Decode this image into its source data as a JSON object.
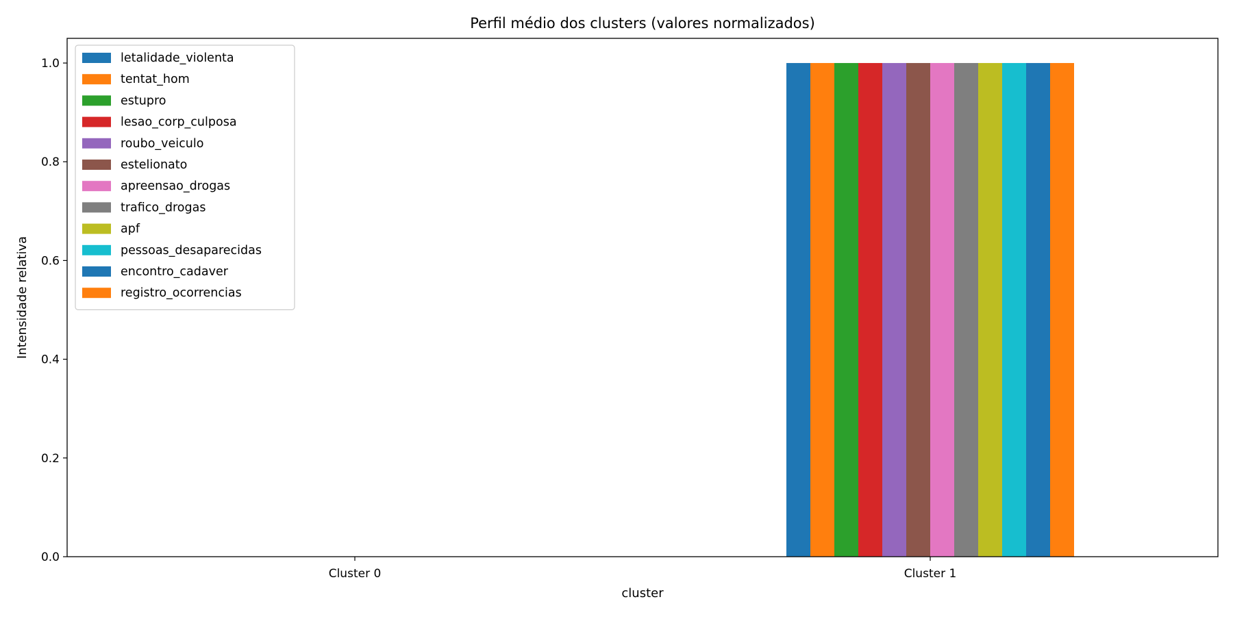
{
  "chart_data": {
    "type": "bar",
    "title": "Perfil médio dos clusters (valores normalizados)",
    "xlabel": "cluster",
    "ylabel": "Intensidade relativa",
    "categories": [
      "Cluster 0",
      "Cluster 1"
    ],
    "ylim": [
      0,
      1.05
    ],
    "yticks": [
      0.0,
      0.2,
      0.4,
      0.6,
      0.8,
      1.0
    ],
    "ytick_labels": [
      "0.0",
      "0.2",
      "0.4",
      "0.6",
      "0.8",
      "1.0"
    ],
    "grid": false,
    "legend_position": "upper-left",
    "series": [
      {
        "name": "letalidade_violenta",
        "color": "#1f77b4",
        "values": [
          0.0,
          1.0
        ]
      },
      {
        "name": "tentat_hom",
        "color": "#ff7f0e",
        "values": [
          0.0,
          1.0
        ]
      },
      {
        "name": "estupro",
        "color": "#2ca02c",
        "values": [
          0.0,
          1.0
        ]
      },
      {
        "name": "lesao_corp_culposa",
        "color": "#d62728",
        "values": [
          0.0,
          1.0
        ]
      },
      {
        "name": "roubo_veiculo",
        "color": "#9467bd",
        "values": [
          0.0,
          1.0
        ]
      },
      {
        "name": "estelionato",
        "color": "#8c564b",
        "values": [
          0.0,
          1.0
        ]
      },
      {
        "name": "apreensao_drogas",
        "color": "#e377c2",
        "values": [
          0.0,
          1.0
        ]
      },
      {
        "name": "trafico_drogas",
        "color": "#7f7f7f",
        "values": [
          0.0,
          1.0
        ]
      },
      {
        "name": "apf",
        "color": "#bcbd22",
        "values": [
          0.0,
          1.0
        ]
      },
      {
        "name": "pessoas_desaparecidas",
        "color": "#17becf",
        "values": [
          0.0,
          1.0
        ]
      },
      {
        "name": "encontro_cadaver",
        "color": "#1f77b4",
        "values": [
          0.0,
          1.0
        ]
      },
      {
        "name": "registro_ocorrencias",
        "color": "#ff7f0e",
        "values": [
          0.0,
          1.0
        ]
      }
    ]
  }
}
